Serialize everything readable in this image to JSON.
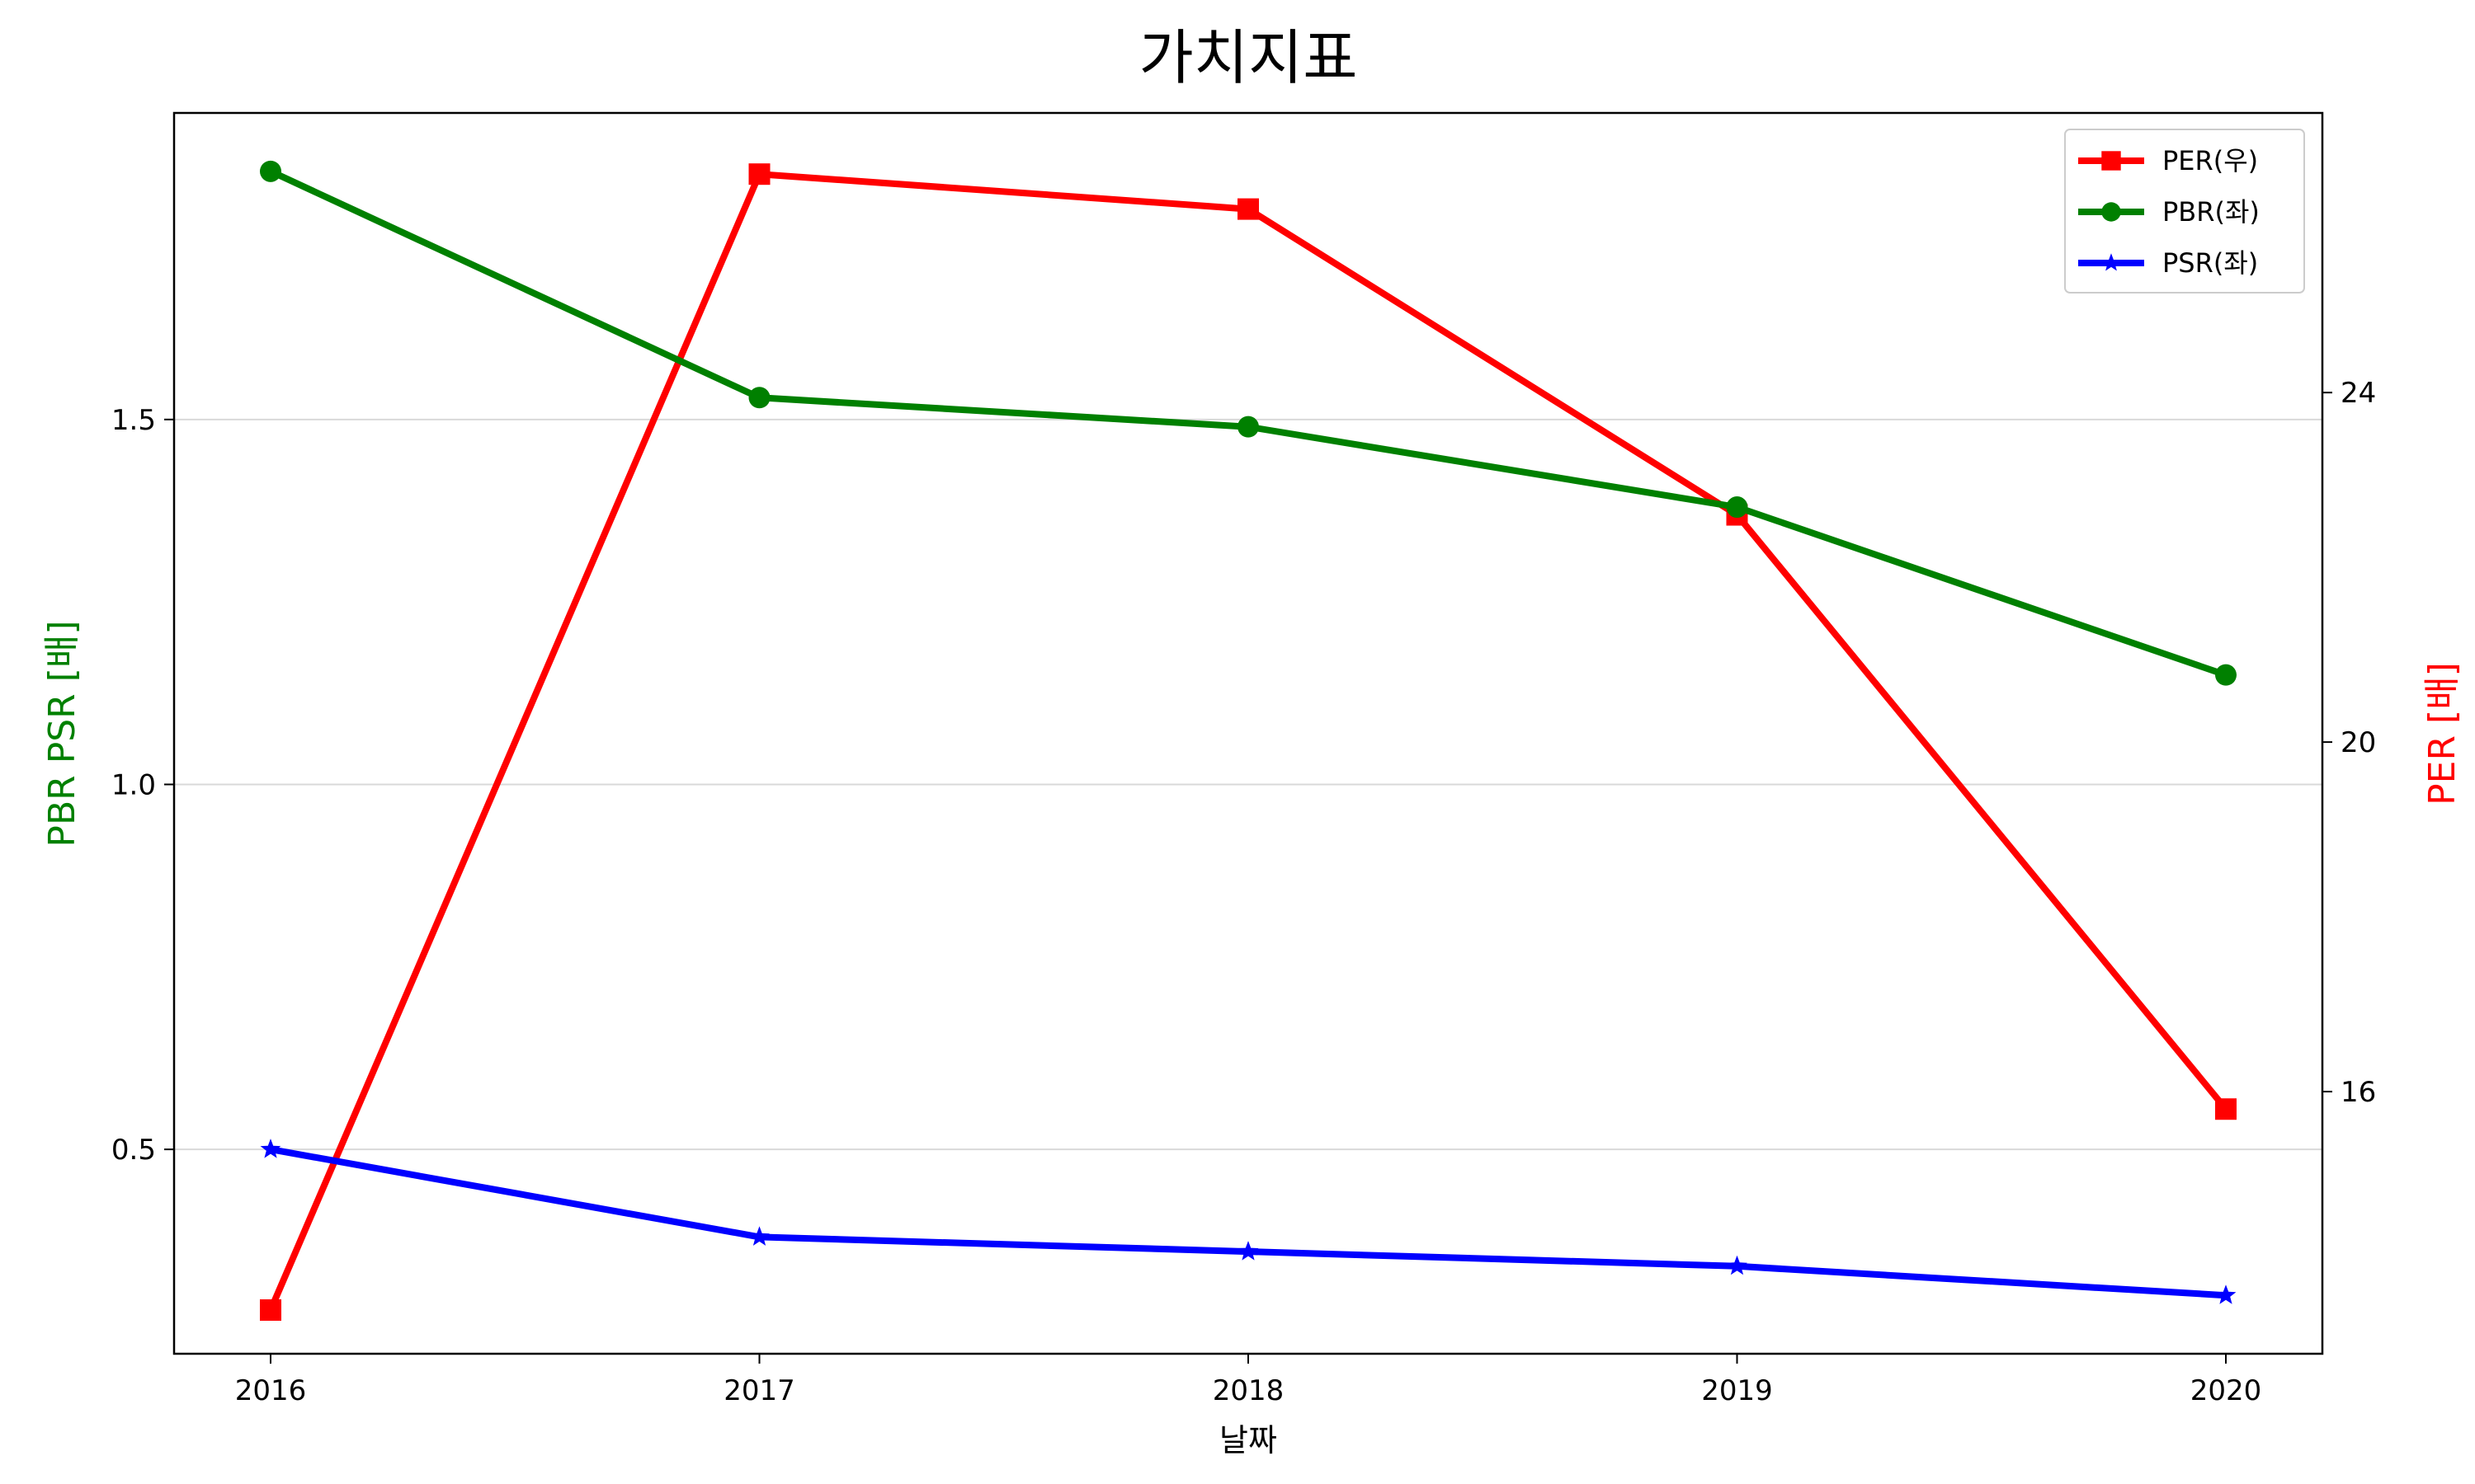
{
  "chart_data": {
    "type": "line",
    "title": "가치지표",
    "xlabel": "날짜",
    "ylabel_left": "PBR PSR [배]",
    "ylabel_right": "PER [배]",
    "x": [
      "2016",
      "2017",
      "2018",
      "2019",
      "2020"
    ],
    "ylim_left": [
      0.22,
      1.92
    ],
    "ylim_right": [
      13.0,
      27.2
    ],
    "yticks_left": [
      "0.5",
      "1.0",
      "1.5"
    ],
    "yticks_right": [
      "16",
      "20",
      "24"
    ],
    "grid": "horizontal (left axis)",
    "legend_position": "top-right",
    "series": [
      {
        "name": "PER(우)",
        "axis": "right",
        "color": "#ff0000",
        "marker": "square",
        "values": [
          13.5,
          26.5,
          26.1,
          22.6,
          15.8
        ]
      },
      {
        "name": "PBR(좌)",
        "axis": "left",
        "color": "#008000",
        "marker": "circle",
        "values": [
          1.84,
          1.53,
          1.49,
          1.38,
          1.15
        ]
      },
      {
        "name": "PSR(좌)",
        "axis": "left",
        "color": "#0000ff",
        "marker": "star",
        "values": [
          0.5,
          0.38,
          0.36,
          0.34,
          0.3
        ]
      }
    ]
  }
}
